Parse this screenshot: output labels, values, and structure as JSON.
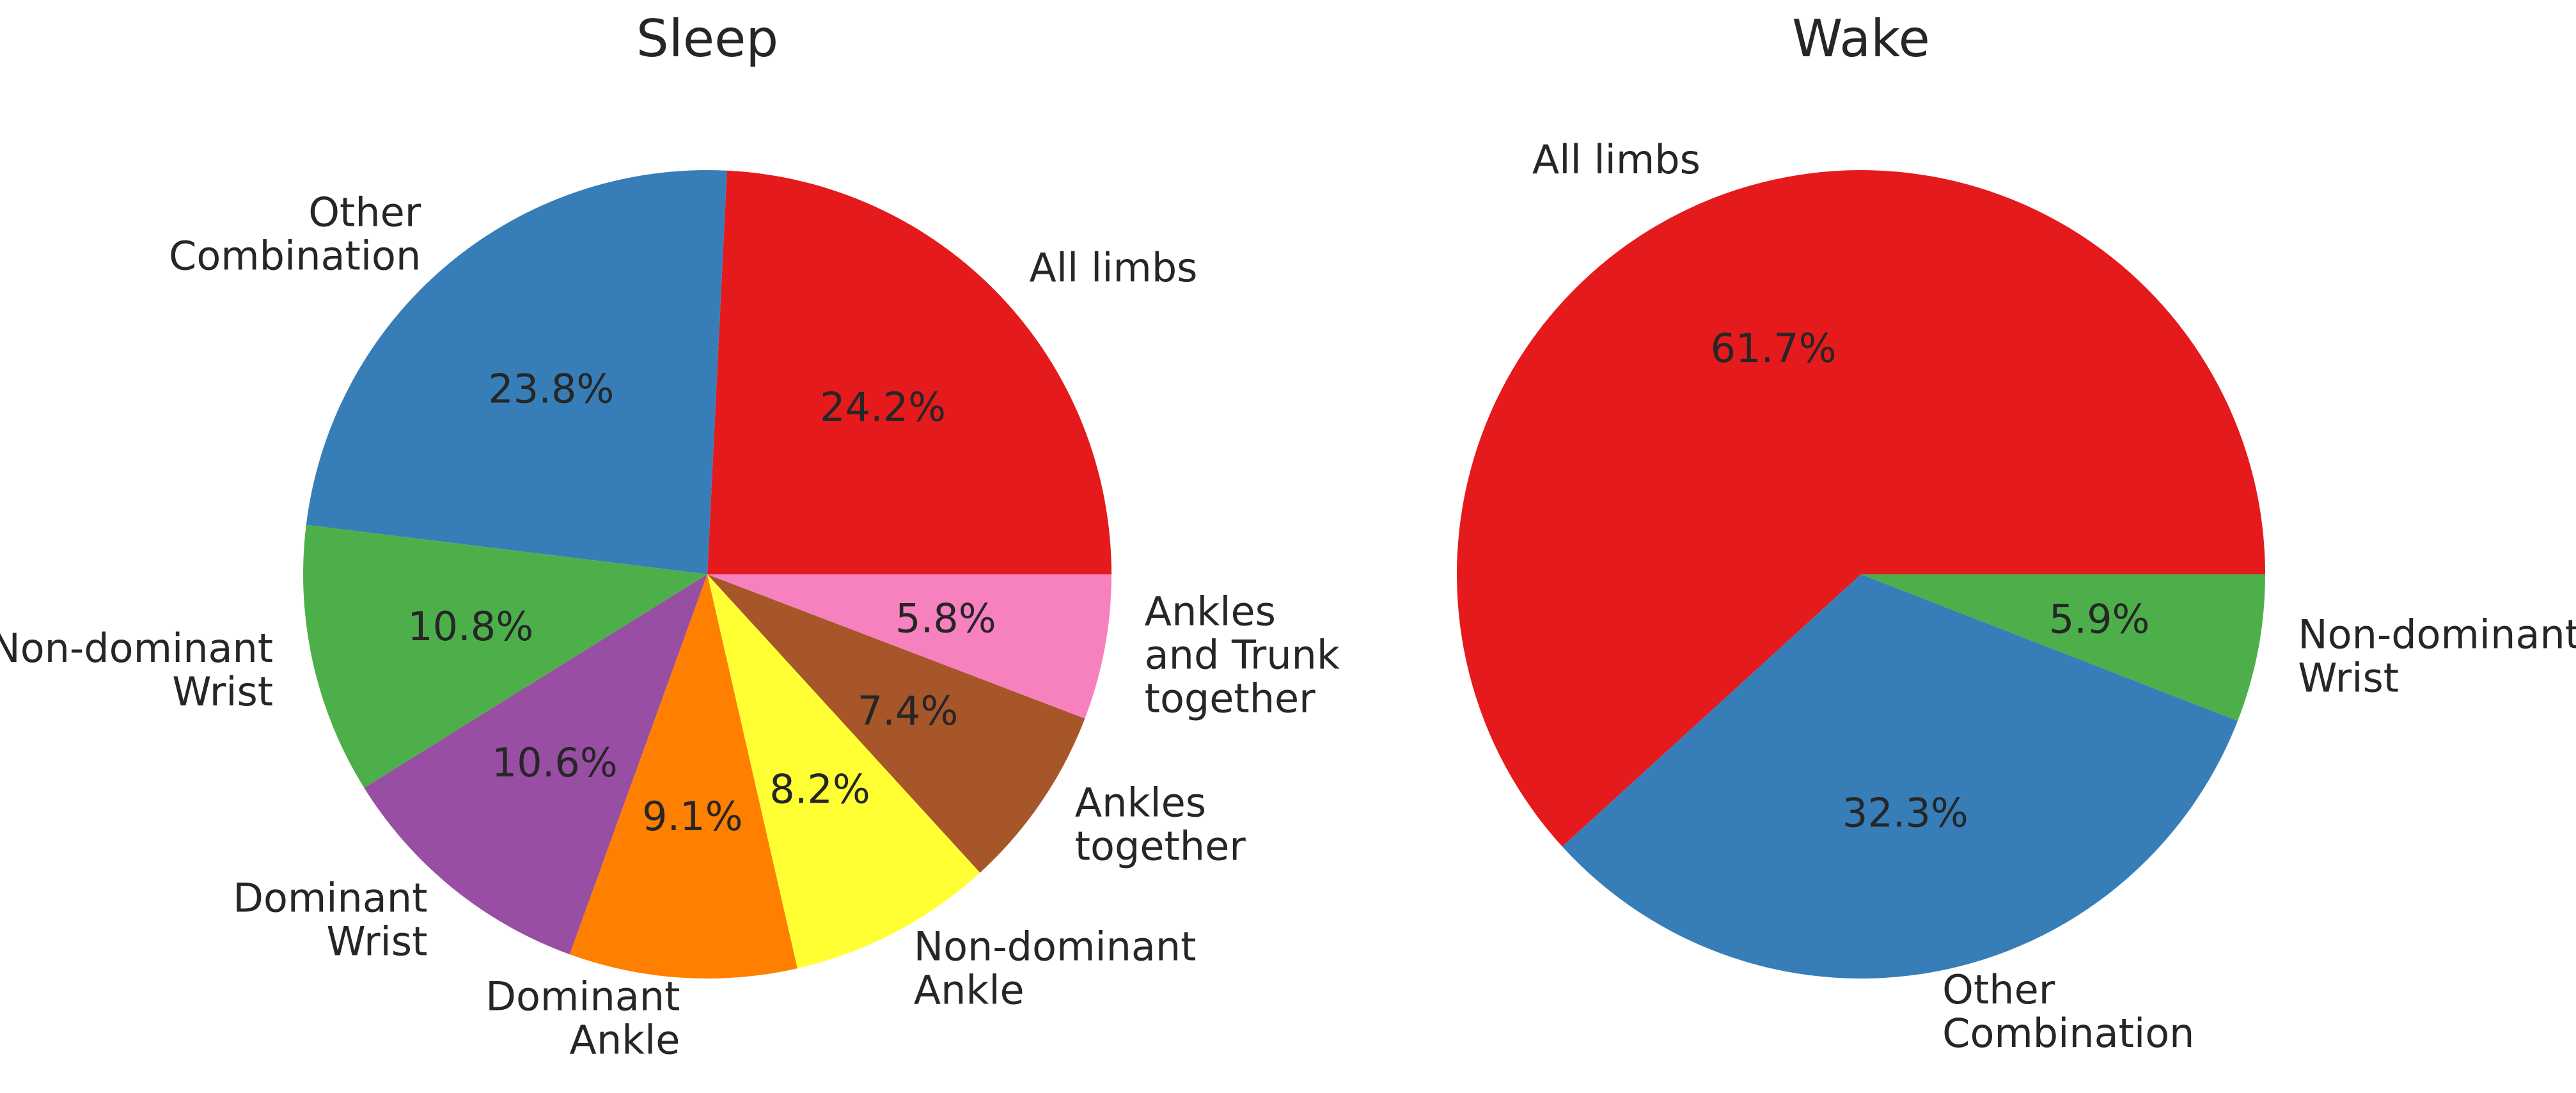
{
  "chart_data": [
    {
      "type": "pie",
      "title": "Sleep",
      "slices": [
        {
          "label": [
            "All limbs"
          ],
          "value": 24.2,
          "pct_text": "24.2%",
          "color": "#e41a1c"
        },
        {
          "label": [
            "Other",
            "Combination"
          ],
          "value": 23.8,
          "pct_text": "23.8%",
          "color": "#377eb8"
        },
        {
          "label": [
            "Non-dominant",
            "Wrist"
          ],
          "value": 10.8,
          "pct_text": "10.8%",
          "color": "#4daf4a"
        },
        {
          "label": [
            "Dominant",
            "Wrist"
          ],
          "value": 10.6,
          "pct_text": "10.6%",
          "color": "#984ea3"
        },
        {
          "label": [
            "Dominant",
            "Ankle"
          ],
          "value": 9.1,
          "pct_text": "9.1%",
          "color": "#ff7f00"
        },
        {
          "label": [
            "Non-dominant",
            "Ankle"
          ],
          "value": 8.2,
          "pct_text": "8.2%",
          "color": "#ffff33"
        },
        {
          "label": [
            "Ankles",
            "together"
          ],
          "value": 7.4,
          "pct_text": "7.4%",
          "color": "#a65628"
        },
        {
          "label": [
            "Ankles",
            "and Trunk",
            "together"
          ],
          "value": 5.8,
          "pct_text": "5.8%",
          "color": "#f781bf"
        }
      ]
    },
    {
      "type": "pie",
      "title": "Wake",
      "slices": [
        {
          "label": [
            "All limbs"
          ],
          "value": 61.7,
          "pct_text": "61.7%",
          "color": "#e41a1c"
        },
        {
          "label": [
            "Other",
            "Combination"
          ],
          "value": 32.3,
          "pct_text": "32.3%",
          "color": "#377eb8"
        },
        {
          "label": [
            "Non-dominant",
            "Wrist"
          ],
          "value": 5.9,
          "pct_text": "5.9%",
          "color": "#4daf4a"
        }
      ]
    }
  ]
}
